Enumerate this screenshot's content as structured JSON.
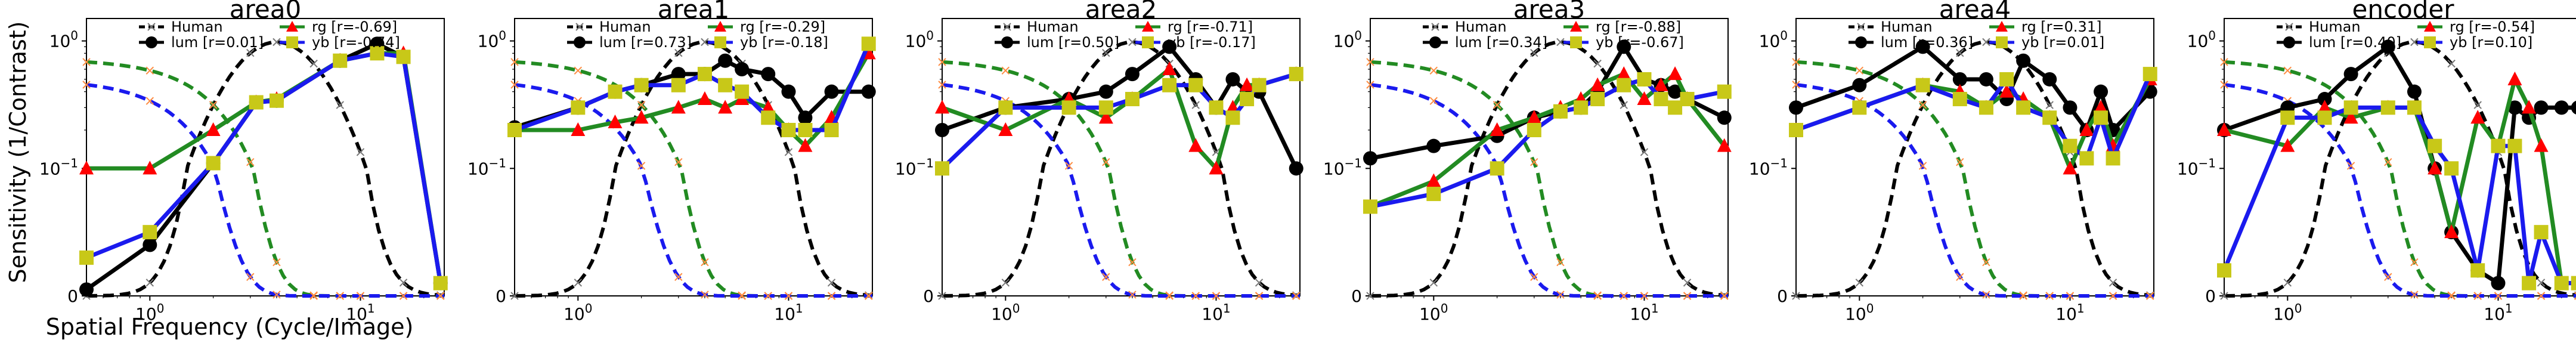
{
  "figure": {
    "ylabel": "Sensitivity (1/Contrast)",
    "xlabel": "Spatial Frequency (Cycle/Image)"
  },
  "legend_labels": {
    "human": "Human",
    "lum": "lum",
    "rg": "rg",
    "yb": "yb"
  },
  "colors": {
    "human": "#000000",
    "lum": "#000000",
    "rg": "#228B22",
    "yb": "#1a1aee",
    "human_marker": "#777777",
    "rg_marker": "#ff0000",
    "yb_marker": "#c8c818",
    "cross_orange": "#ff8c42"
  },
  "chart_data": [
    {
      "type": "line",
      "title": "area0",
      "xscale": "symlog",
      "yscale": "symlog",
      "xlim": [
        0.5,
        25
      ],
      "ylim": [
        0,
        1.5
      ],
      "xticks": [
        "10^0",
        "10^1"
      ],
      "yticks": [
        "0",
        "10^-1",
        "10^0"
      ],
      "legend_position": "top",
      "x": [
        0.5,
        1,
        2,
        3.2,
        4,
        8,
        12,
        16,
        24
      ],
      "correlations": {
        "lum": "[r=0.01]",
        "rg": "[r=-0.69]",
        "yb": "[r=-0.74]"
      },
      "series": [
        {
          "name": "lum",
          "values": [
            0.005,
            0.04,
            0.11,
            0.33,
            0.34,
            0.7,
            0.95,
            0.75,
            0.01
          ]
        },
        {
          "name": "rg",
          "values": [
            0.1,
            0.1,
            0.2,
            0.33,
            0.35,
            0.7,
            0.8,
            0.8,
            0.01
          ]
        },
        {
          "name": "yb",
          "values": [
            0.03,
            0.05,
            0.11,
            0.33,
            0.34,
            0.7,
            0.8,
            0.75,
            0.01
          ]
        }
      ]
    },
    {
      "type": "line",
      "title": "area1",
      "xscale": "symlog",
      "yscale": "symlog",
      "xlim": [
        0.5,
        25
      ],
      "ylim": [
        0,
        1.5
      ],
      "xticks": [
        "10^0",
        "10^1"
      ],
      "yticks": [
        "0",
        "10^-1",
        "10^0"
      ],
      "legend_position": "top",
      "x": [
        0.5,
        1,
        1.5,
        2,
        3,
        4,
        5,
        6,
        8,
        10,
        12,
        16,
        24
      ],
      "correlations": {
        "lum": "[r=0.73]",
        "rg": "[r=-0.29]",
        "yb": "[r=-0.18]"
      },
      "series": [
        {
          "name": "lum",
          "values": [
            0.21,
            0.3,
            0.4,
            0.45,
            0.55,
            0.55,
            0.7,
            0.6,
            0.55,
            0.4,
            0.25,
            0.4,
            0.4
          ]
        },
        {
          "name": "rg",
          "values": [
            0.2,
            0.2,
            0.23,
            0.25,
            0.3,
            0.35,
            0.3,
            0.35,
            0.3,
            0.2,
            0.15,
            0.25,
            0.8
          ]
        },
        {
          "name": "yb",
          "values": [
            0.2,
            0.3,
            0.4,
            0.45,
            0.45,
            0.55,
            0.45,
            0.4,
            0.25,
            0.2,
            0.2,
            0.2,
            0.95
          ]
        }
      ]
    },
    {
      "type": "line",
      "title": "area2",
      "xscale": "symlog",
      "yscale": "symlog",
      "xlim": [
        0.5,
        25
      ],
      "ylim": [
        0,
        1.5
      ],
      "xticks": [
        "10^0",
        "10^1"
      ],
      "yticks": [
        "0",
        "10^-1",
        "10^0"
      ],
      "legend_position": "top",
      "x": [
        0.5,
        1,
        2,
        3,
        4,
        6,
        8,
        10,
        12,
        14,
        16,
        24
      ],
      "correlations": {
        "lum": "[r=0.50]",
        "rg": "[r=-0.71]",
        "yb": "[r=-0.17]"
      },
      "series": [
        {
          "name": "lum",
          "values": [
            0.2,
            0.3,
            0.35,
            0.4,
            0.55,
            0.9,
            0.5,
            0.3,
            0.5,
            0.4,
            0.4,
            0.1
          ]
        },
        {
          "name": "rg",
          "values": [
            0.3,
            0.2,
            0.35,
            0.25,
            0.35,
            0.6,
            0.15,
            0.1,
            0.3,
            0.45,
            0.45,
            0.55
          ]
        },
        {
          "name": "yb",
          "values": [
            0.1,
            0.3,
            0.3,
            0.3,
            0.35,
            0.45,
            0.45,
            0.3,
            0.25,
            0.35,
            0.45,
            0.55
          ]
        }
      ]
    },
    {
      "type": "line",
      "title": "area3",
      "xscale": "symlog",
      "yscale": "symlog",
      "xlim": [
        0.5,
        25
      ],
      "ylim": [
        0,
        1.5
      ],
      "xticks": [
        "10^0",
        "10^1"
      ],
      "yticks": [
        "0",
        "10^-1",
        "10^0"
      ],
      "legend_position": "top",
      "x": [
        0.5,
        1,
        2,
        3,
        4,
        5,
        6,
        8,
        10,
        12,
        14,
        16,
        24
      ],
      "correlations": {
        "lum": "[r=0.34]",
        "rg": "[r=-0.88]",
        "yb": "[r=-0.67]"
      },
      "series": [
        {
          "name": "lum",
          "values": [
            0.12,
            0.15,
            0.18,
            0.25,
            0.28,
            0.3,
            0.4,
            0.9,
            0.5,
            0.45,
            0.4,
            0.35,
            0.25
          ]
        },
        {
          "name": "rg",
          "values": [
            0.07,
            0.09,
            0.2,
            0.25,
            0.3,
            0.35,
            0.45,
            0.55,
            0.35,
            0.45,
            0.55,
            0.35,
            0.15
          ]
        },
        {
          "name": "yb",
          "values": [
            0.07,
            0.08,
            0.1,
            0.2,
            0.28,
            0.3,
            0.35,
            0.45,
            0.5,
            0.35,
            0.3,
            0.35,
            0.4
          ]
        }
      ]
    },
    {
      "type": "line",
      "title": "area4",
      "xscale": "symlog",
      "yscale": "symlog",
      "xlim": [
        0.5,
        25
      ],
      "ylim": [
        0,
        1.5
      ],
      "xticks": [
        "10^0",
        "10^1"
      ],
      "yticks": [
        "0",
        "10^-1",
        "10^0"
      ],
      "legend_position": "top",
      "x": [
        0.5,
        1,
        2,
        3,
        4,
        5,
        6,
        8,
        10,
        12,
        14,
        16,
        24
      ],
      "correlations": {
        "lum": "[r=0.36]",
        "rg": "[r=0.31]",
        "yb": "[r=0.01]"
      },
      "series": [
        {
          "name": "lum",
          "values": [
            0.3,
            0.45,
            0.9,
            0.5,
            0.5,
            0.35,
            0.7,
            0.5,
            0.3,
            0.2,
            0.4,
            0.2,
            0.4
          ]
        },
        {
          "name": "rg",
          "values": [
            0.2,
            0.3,
            0.45,
            0.4,
            0.3,
            0.4,
            0.35,
            0.25,
            0.1,
            0.2,
            0.3,
            0.15,
            0.5
          ]
        },
        {
          "name": "yb",
          "values": [
            0.2,
            0.3,
            0.45,
            0.35,
            0.3,
            0.5,
            0.3,
            0.25,
            0.15,
            0.12,
            0.25,
            0.12,
            0.55
          ]
        }
      ]
    },
    {
      "type": "line",
      "title": "encoder",
      "xscale": "symlog",
      "yscale": "symlog",
      "xlim": [
        0.5,
        25
      ],
      "ylim": [
        0,
        1.5
      ],
      "xticks": [
        "10^0",
        "10^1"
      ],
      "yticks": [
        "0",
        "10^-1",
        "10^0"
      ],
      "legend_position": "top",
      "x": [
        0.5,
        1,
        1.5,
        2,
        3,
        4,
        5,
        6,
        8,
        10,
        12,
        14,
        16,
        20,
        24
      ],
      "correlations": {
        "lum": "[r=0.40]",
        "rg": "[r=-0.54]",
        "yb": "[r=0.10]"
      },
      "series": [
        {
          "name": "lum",
          "values": [
            0.2,
            0.3,
            0.35,
            0.55,
            0.9,
            0.4,
            0.1,
            0.05,
            0.02,
            0.01,
            0.3,
            0.25,
            0.3,
            0.3,
            0.3
          ]
        },
        {
          "name": "rg",
          "values": [
            0.2,
            0.15,
            0.3,
            0.25,
            0.3,
            0.3,
            0.1,
            0.05,
            0.25,
            0.15,
            0.5,
            0.3,
            0.15,
            0.01,
            0.01
          ]
        },
        {
          "name": "yb",
          "values": [
            0.02,
            0.25,
            0.25,
            0.3,
            0.3,
            0.3,
            0.15,
            0.1,
            0.02,
            0.15,
            0.15,
            0.01,
            0.05,
            0.01,
            0.01
          ]
        }
      ]
    }
  ]
}
